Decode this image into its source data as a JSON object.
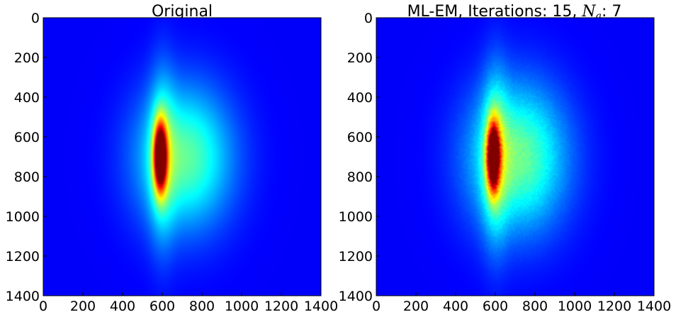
{
  "chart_data": [
    {
      "type": "heatmap",
      "title": "Original",
      "xlim": [
        0,
        1400
      ],
      "ylim": [
        1400,
        0
      ],
      "x_ticks": [
        "0",
        "200",
        "400",
        "600",
        "800",
        "1000",
        "1200",
        "1400"
      ],
      "y_ticks": [
        "0",
        "200",
        "400",
        "600",
        "800",
        "1000",
        "1200",
        "1400"
      ],
      "colormap": "jet",
      "features": [
        {
          "name": "peak",
          "x": 590,
          "y": 700,
          "sx": 22,
          "sy": 115,
          "amplitude": 1.0
        },
        {
          "name": "halo",
          "x": 710,
          "y": 705,
          "sx": 170,
          "sy": 250,
          "amplitude": 0.4
        },
        {
          "name": "edge-glow",
          "x": 600,
          "y": 700,
          "sx": 45,
          "sy": 300,
          "amplitude": 0.22
        }
      ],
      "noise": 0.0
    },
    {
      "type": "heatmap",
      "title": {
        "prefix": "ML-EM, Iterations: 15, ",
        "symbol": "N",
        "subscript": "a",
        "suffix": ": 7"
      },
      "xlim": [
        0,
        1400
      ],
      "ylim": [
        1400,
        0
      ],
      "x_ticks": [
        "0",
        "200",
        "400",
        "600",
        "800",
        "1000",
        "1200",
        "1400"
      ],
      "y_ticks": [
        "0",
        "200",
        "400",
        "600",
        "800",
        "1000",
        "1200",
        "1400"
      ],
      "colormap": "jet",
      "features": [
        {
          "name": "peak",
          "x": 590,
          "y": 700,
          "sx": 22,
          "sy": 115,
          "amplitude": 0.95
        },
        {
          "name": "halo",
          "x": 710,
          "y": 705,
          "sx": 175,
          "sy": 260,
          "amplitude": 0.42
        },
        {
          "name": "edge-glow",
          "x": 600,
          "y": 700,
          "sx": 45,
          "sy": 300,
          "amplitude": 0.24
        }
      ],
      "noise": 0.07
    }
  ]
}
